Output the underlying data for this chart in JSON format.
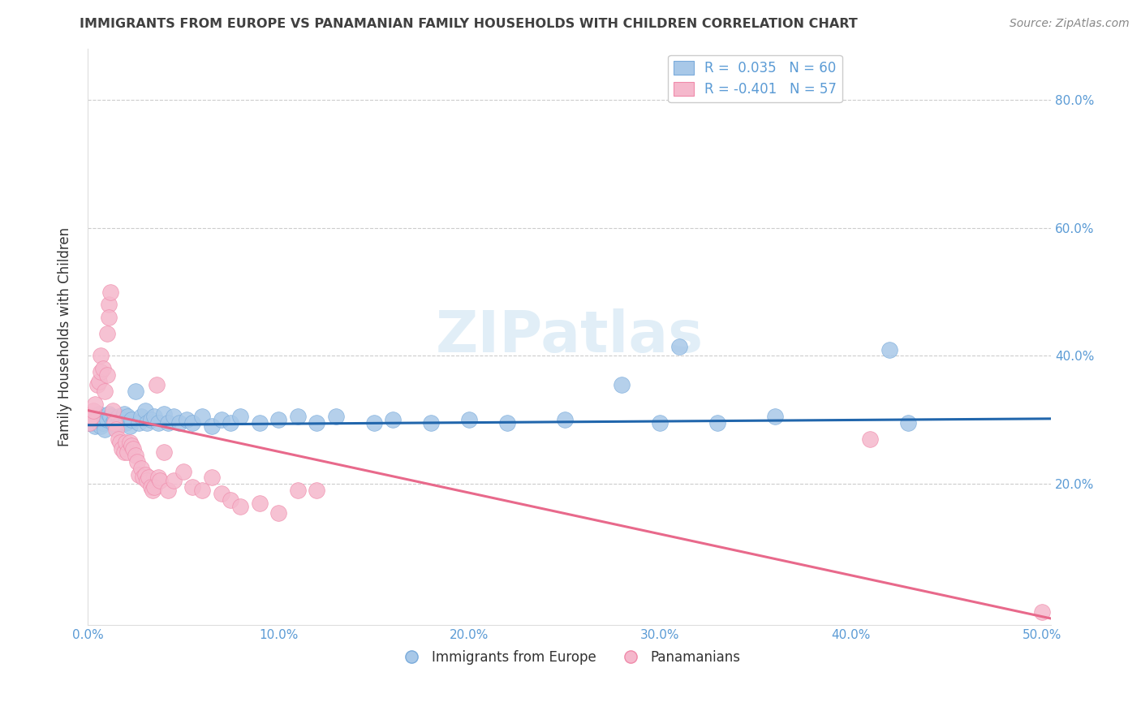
{
  "title": "IMMIGRANTS FROM EUROPE VS PANAMANIAN FAMILY HOUSEHOLDS WITH CHILDREN CORRELATION CHART",
  "source": "Source: ZipAtlas.com",
  "ylabel": "Family Households with Children",
  "xlim": [
    0.0,
    0.505
  ],
  "ylim": [
    -0.02,
    0.88
  ],
  "xtick_values": [
    0.0,
    0.1,
    0.2,
    0.3,
    0.4,
    0.5
  ],
  "ytick_values": [
    0.2,
    0.4,
    0.6,
    0.8
  ],
  "legend_r1_label": "R =  0.035   N = 60",
  "legend_r2_label": "R = -0.401   N = 57",
  "watermark_text": "ZIPatlas",
  "blue_scatter": [
    [
      0.001,
      0.295
    ],
    [
      0.002,
      0.3
    ],
    [
      0.003,
      0.295
    ],
    [
      0.004,
      0.29
    ],
    [
      0.005,
      0.305
    ],
    [
      0.006,
      0.31
    ],
    [
      0.007,
      0.29
    ],
    [
      0.008,
      0.295
    ],
    [
      0.009,
      0.285
    ],
    [
      0.01,
      0.3
    ],
    [
      0.011,
      0.31
    ],
    [
      0.012,
      0.305
    ],
    [
      0.013,
      0.295
    ],
    [
      0.014,
      0.3
    ],
    [
      0.015,
      0.29
    ],
    [
      0.016,
      0.305
    ],
    [
      0.017,
      0.295
    ],
    [
      0.018,
      0.3
    ],
    [
      0.019,
      0.31
    ],
    [
      0.02,
      0.295
    ],
    [
      0.021,
      0.305
    ],
    [
      0.022,
      0.29
    ],
    [
      0.023,
      0.3
    ],
    [
      0.025,
      0.345
    ],
    [
      0.027,
      0.295
    ],
    [
      0.028,
      0.305
    ],
    [
      0.03,
      0.315
    ],
    [
      0.031,
      0.295
    ],
    [
      0.033,
      0.3
    ],
    [
      0.035,
      0.305
    ],
    [
      0.037,
      0.295
    ],
    [
      0.04,
      0.31
    ],
    [
      0.042,
      0.295
    ],
    [
      0.045,
      0.305
    ],
    [
      0.048,
      0.295
    ],
    [
      0.052,
      0.3
    ],
    [
      0.055,
      0.295
    ],
    [
      0.06,
      0.305
    ],
    [
      0.065,
      0.29
    ],
    [
      0.07,
      0.3
    ],
    [
      0.075,
      0.295
    ],
    [
      0.08,
      0.305
    ],
    [
      0.09,
      0.295
    ],
    [
      0.1,
      0.3
    ],
    [
      0.11,
      0.305
    ],
    [
      0.12,
      0.295
    ],
    [
      0.13,
      0.305
    ],
    [
      0.15,
      0.295
    ],
    [
      0.16,
      0.3
    ],
    [
      0.18,
      0.295
    ],
    [
      0.2,
      0.3
    ],
    [
      0.22,
      0.295
    ],
    [
      0.25,
      0.3
    ],
    [
      0.28,
      0.355
    ],
    [
      0.3,
      0.295
    ],
    [
      0.31,
      0.415
    ],
    [
      0.33,
      0.295
    ],
    [
      0.36,
      0.305
    ],
    [
      0.42,
      0.41
    ],
    [
      0.43,
      0.295
    ]
  ],
  "pink_scatter": [
    [
      0.001,
      0.295
    ],
    [
      0.002,
      0.305
    ],
    [
      0.003,
      0.315
    ],
    [
      0.004,
      0.325
    ],
    [
      0.005,
      0.355
    ],
    [
      0.006,
      0.36
    ],
    [
      0.007,
      0.375
    ],
    [
      0.007,
      0.4
    ],
    [
      0.008,
      0.38
    ],
    [
      0.009,
      0.345
    ],
    [
      0.01,
      0.37
    ],
    [
      0.01,
      0.435
    ],
    [
      0.011,
      0.48
    ],
    [
      0.011,
      0.46
    ],
    [
      0.012,
      0.5
    ],
    [
      0.013,
      0.315
    ],
    [
      0.014,
      0.295
    ],
    [
      0.015,
      0.285
    ],
    [
      0.016,
      0.27
    ],
    [
      0.017,
      0.265
    ],
    [
      0.018,
      0.255
    ],
    [
      0.019,
      0.25
    ],
    [
      0.02,
      0.265
    ],
    [
      0.021,
      0.25
    ],
    [
      0.022,
      0.265
    ],
    [
      0.023,
      0.26
    ],
    [
      0.024,
      0.255
    ],
    [
      0.025,
      0.245
    ],
    [
      0.026,
      0.235
    ],
    [
      0.027,
      0.215
    ],
    [
      0.028,
      0.225
    ],
    [
      0.029,
      0.21
    ],
    [
      0.03,
      0.215
    ],
    [
      0.031,
      0.205
    ],
    [
      0.032,
      0.21
    ],
    [
      0.033,
      0.195
    ],
    [
      0.034,
      0.19
    ],
    [
      0.035,
      0.195
    ],
    [
      0.036,
      0.355
    ],
    [
      0.037,
      0.21
    ],
    [
      0.038,
      0.205
    ],
    [
      0.04,
      0.25
    ],
    [
      0.042,
      0.19
    ],
    [
      0.045,
      0.205
    ],
    [
      0.05,
      0.22
    ],
    [
      0.055,
      0.195
    ],
    [
      0.06,
      0.19
    ],
    [
      0.065,
      0.21
    ],
    [
      0.07,
      0.185
    ],
    [
      0.075,
      0.175
    ],
    [
      0.08,
      0.165
    ],
    [
      0.09,
      0.17
    ],
    [
      0.1,
      0.155
    ],
    [
      0.11,
      0.19
    ],
    [
      0.12,
      0.19
    ],
    [
      0.41,
      0.27
    ],
    [
      0.5,
      0.0
    ]
  ],
  "blue_trend_x": [
    0.0,
    0.505
  ],
  "blue_trend_y": [
    0.292,
    0.302
  ],
  "pink_trend_x": [
    0.0,
    0.505
  ],
  "pink_trend_y": [
    0.315,
    -0.01
  ],
  "blue_scatter_color": "#a8c8e8",
  "blue_scatter_edge": "#7aabdb",
  "pink_scatter_color": "#f5b8cc",
  "pink_scatter_edge": "#f08aaa",
  "blue_line_color": "#2166ac",
  "pink_line_color": "#e8698b",
  "grid_color": "#cccccc",
  "tick_color": "#5b9bd5",
  "title_color": "#404040",
  "source_color": "#888888",
  "watermark_color": "#d5e8f5"
}
